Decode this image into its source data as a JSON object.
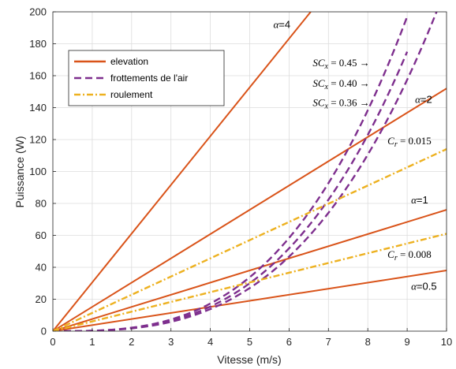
{
  "chart_data": {
    "type": "line",
    "title": "",
    "xlabel": "Vitesse (m/s)",
    "ylabel": "Puissance (W)",
    "xlim": [
      0,
      10
    ],
    "ylim": [
      0,
      200
    ],
    "xticks": [
      "0",
      "1",
      "2",
      "3",
      "4",
      "5",
      "6",
      "7",
      "8",
      "9",
      "10"
    ],
    "yticks": [
      "0",
      "20",
      "40",
      "60",
      "80",
      "100",
      "120",
      "140",
      "160",
      "180",
      "200"
    ],
    "grid": true,
    "legend_position": "top-left",
    "legend": [
      {
        "label": "elevation",
        "style": "solid",
        "color": "#D95319"
      },
      {
        "label": "frottements de l'air",
        "style": "dashed",
        "color": "#7E2F8E"
      },
      {
        "label": "roulement",
        "style": "dashdot",
        "color": "#EDB120"
      }
    ],
    "series": [
      {
        "group": "elevation",
        "name": "α=0.5",
        "x": [
          0,
          10
        ],
        "y": [
          0,
          38
        ]
      },
      {
        "group": "elevation",
        "name": "α=1",
        "x": [
          0,
          10
        ],
        "y": [
          0,
          76
        ]
      },
      {
        "group": "elevation",
        "name": "α=2",
        "x": [
          0,
          10
        ],
        "y": [
          0,
          152
        ]
      },
      {
        "group": "elevation",
        "name": "α=4",
        "x": [
          0,
          6.55
        ],
        "y": [
          0,
          200
        ]
      },
      {
        "group": "frottements de l'air",
        "name": "SCx = 0.45",
        "x": [
          0,
          1,
          2,
          3,
          4,
          5,
          6,
          7,
          8,
          9
        ],
        "y": [
          0,
          0.27,
          2.16,
          7.29,
          17.3,
          33.8,
          58.3,
          92.6,
          138,
          197
        ]
      },
      {
        "group": "frottements de l'air",
        "name": "SCx = 0.40",
        "x": [
          0,
          1,
          2,
          3,
          4,
          5,
          6,
          7,
          8,
          9
        ],
        "y": [
          0,
          0.24,
          1.92,
          6.48,
          15.4,
          30,
          51.8,
          82.3,
          123,
          175
        ]
      },
      {
        "group": "frottements de l'air",
        "name": "SCx = 0.36",
        "x": [
          0,
          1,
          2,
          3,
          4,
          5,
          6,
          7,
          8,
          9,
          10
        ],
        "y": [
          0,
          0.22,
          1.73,
          5.83,
          13.8,
          27,
          46.7,
          74.1,
          111,
          157,
          216
        ]
      },
      {
        "group": "roulement",
        "name": "Cr = 0.015",
        "x": [
          0,
          10
        ],
        "y": [
          0,
          114
        ]
      },
      {
        "group": "roulement",
        "name": "Cr = 0.008",
        "x": [
          0,
          10
        ],
        "y": [
          0,
          61
        ]
      }
    ],
    "annotations": [
      {
        "sym": "α",
        "rest": "=4",
        "x": 5.6,
        "y": 190
      },
      {
        "sym": "α",
        "rest": "=2",
        "x": 9.2,
        "y": 143
      },
      {
        "sym": "α",
        "rest": "=1",
        "x": 9.1,
        "y": 80
      },
      {
        "sym": "α",
        "rest": "=0.5",
        "x": 9.1,
        "y": 26
      },
      {
        "text": "SC",
        "sub": "x",
        "rest": " = 0.45 →",
        "x": 6.6,
        "y": 166
      },
      {
        "text": "SC",
        "sub": "x",
        "rest": " = 0.40 →",
        "x": 6.6,
        "y": 153
      },
      {
        "text": "SC",
        "sub": "x",
        "rest": " = 0.36 →",
        "x": 6.6,
        "y": 141
      },
      {
        "text": "C",
        "sub": "r",
        "rest": " = 0.015",
        "x": 8.5,
        "y": 117
      },
      {
        "text": "C",
        "sub": "r",
        "rest": " = 0.008",
        "x": 8.5,
        "y": 46
      }
    ]
  }
}
